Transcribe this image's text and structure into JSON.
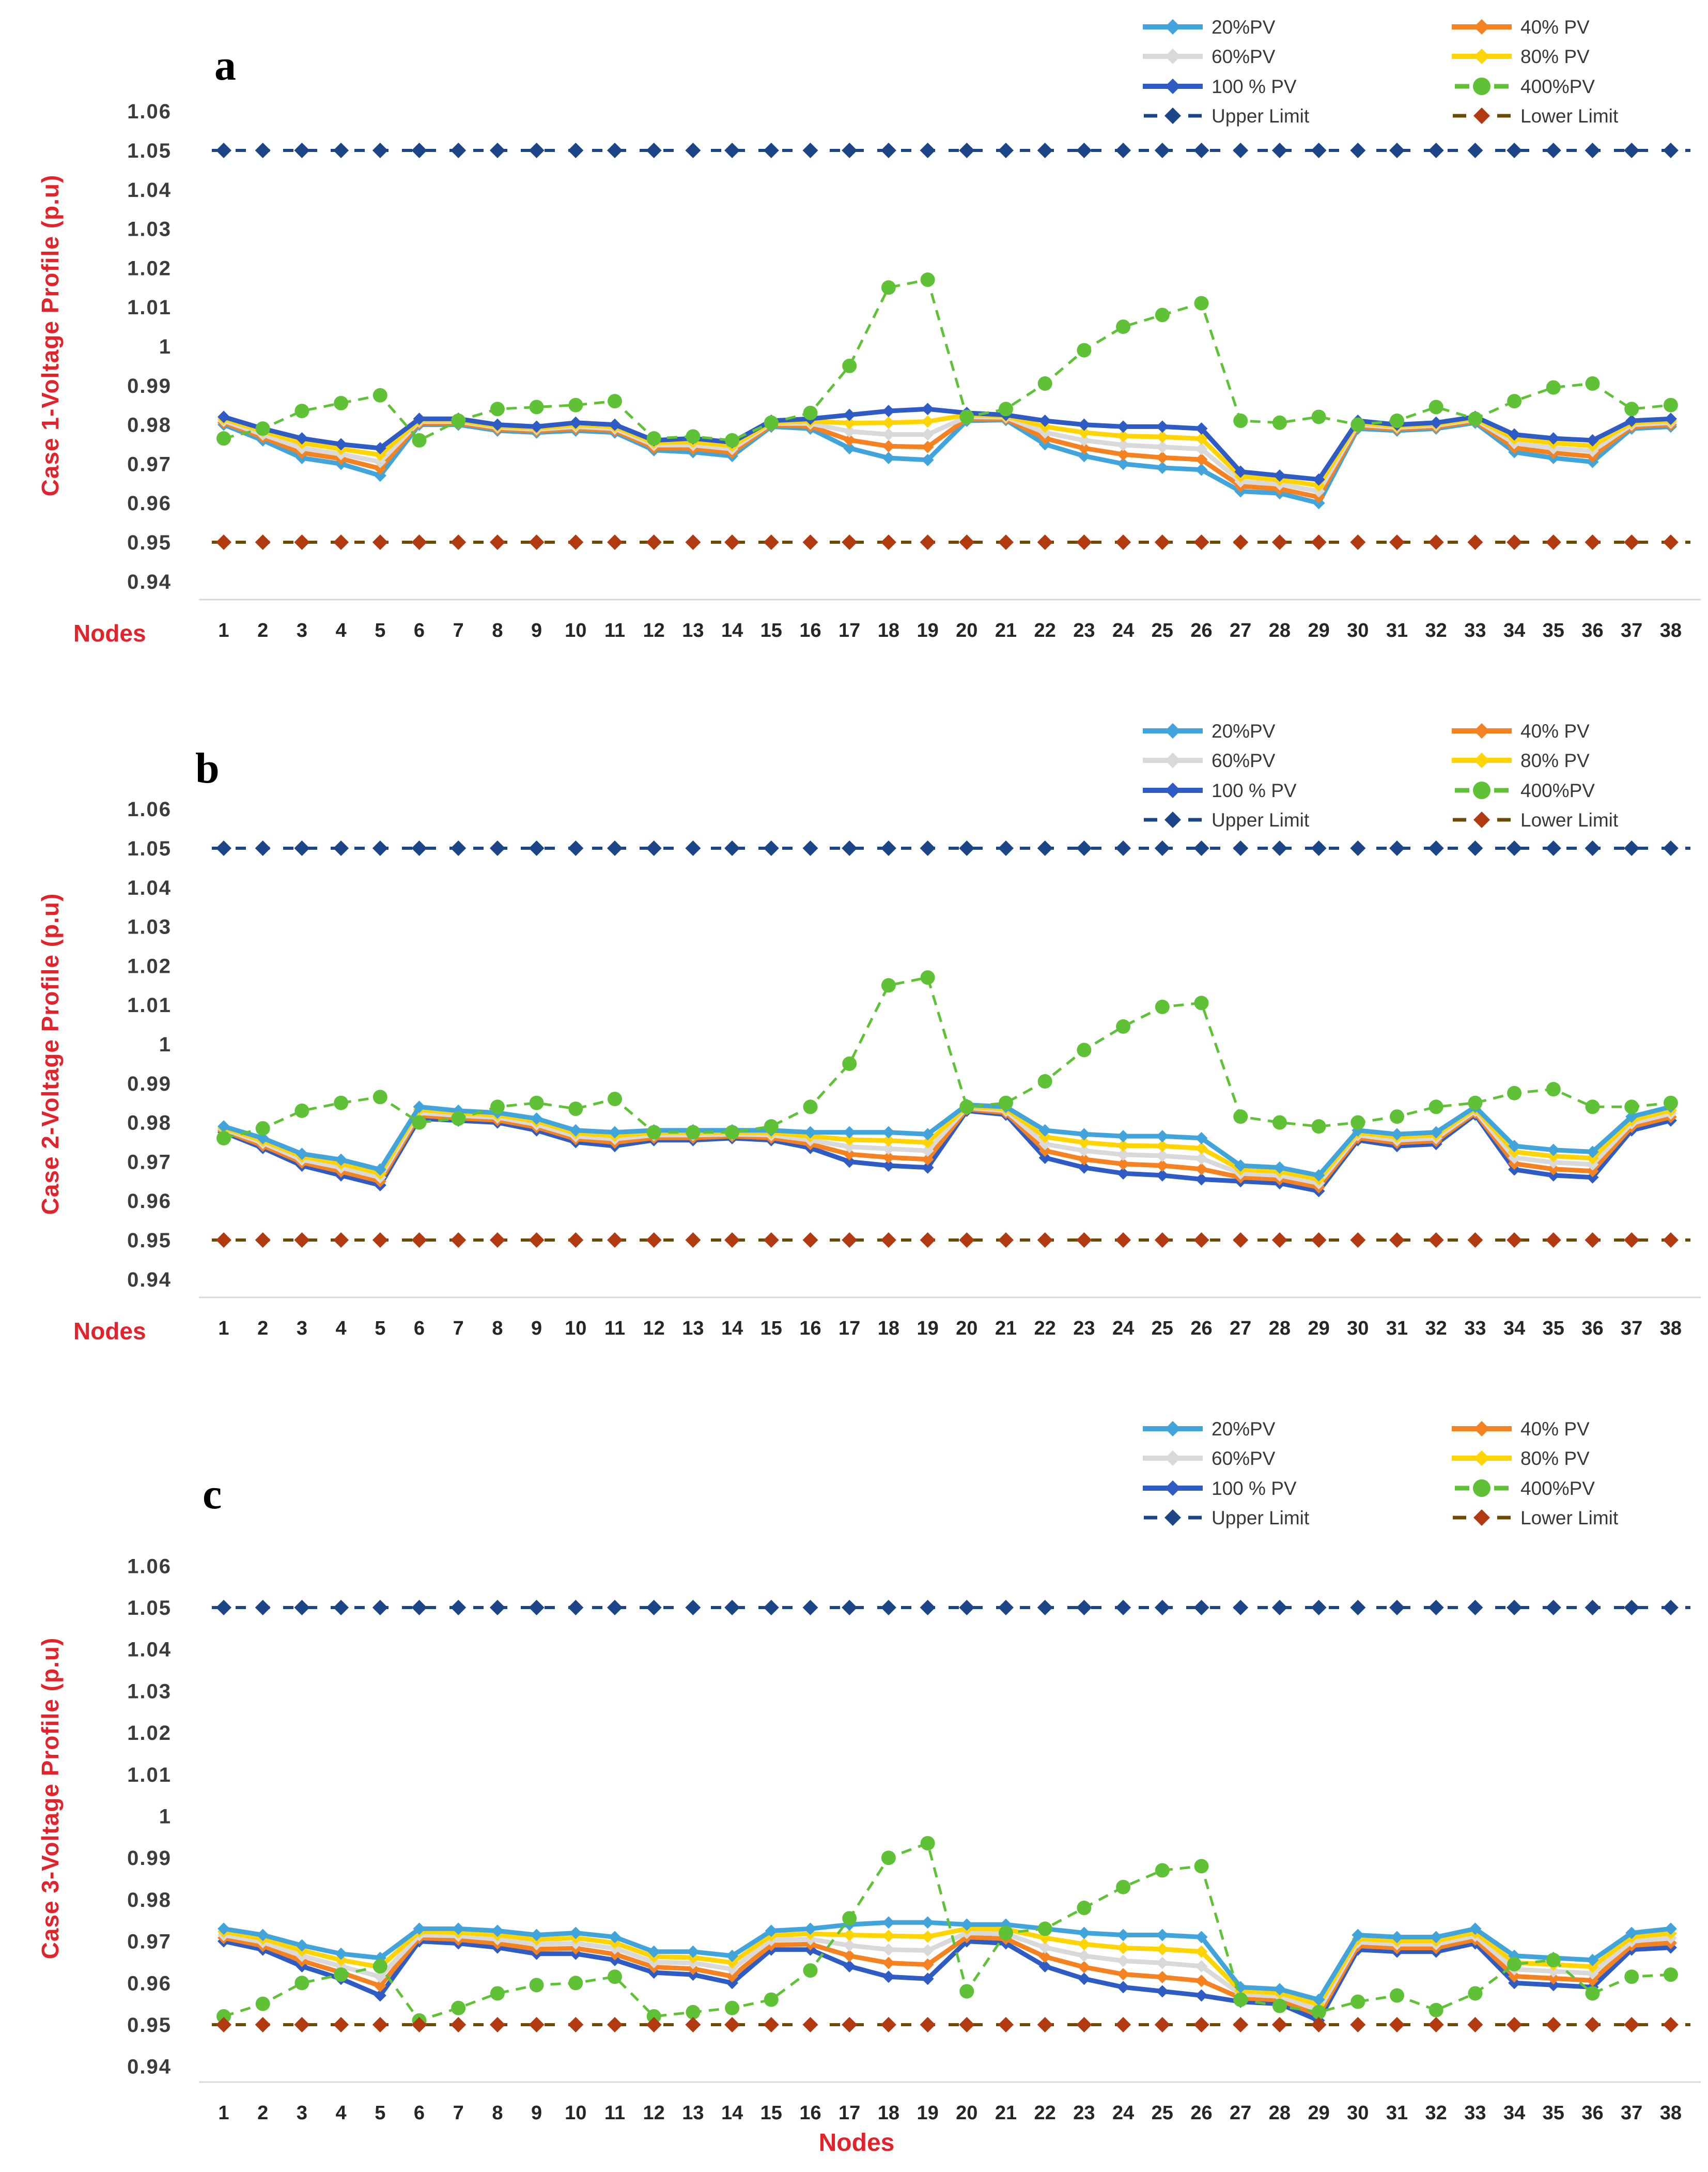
{
  "axes": {
    "ytick_labels": [
      "1.06",
      "1.05",
      "1.04",
      "1.03",
      "1.02",
      "1.01",
      "1",
      "0.99",
      "0.98",
      "0.97",
      "0.96",
      "0.95",
      "0.94"
    ],
    "node_labels": [
      1,
      2,
      3,
      4,
      5,
      6,
      7,
      8,
      9,
      10,
      11,
      12,
      13,
      14,
      15,
      16,
      17,
      18,
      19,
      20,
      21,
      22,
      23,
      24,
      25,
      26,
      27,
      28,
      29,
      30,
      31,
      32,
      33,
      34,
      35,
      36,
      37,
      38
    ]
  },
  "legend": {
    "entries": [
      {
        "label": "20%PV",
        "color": "#41a5dc",
        "style": "solid"
      },
      {
        "label": "40% PV",
        "color": "#f58220",
        "style": "solid"
      },
      {
        "label": "60%PV",
        "color": "#d9d9d9",
        "style": "solid"
      },
      {
        "label": "80% PV",
        "color": "#ffd400",
        "style": "solid"
      },
      {
        "label": "100 % PV",
        "color": "#2f5bc4",
        "style": "solid"
      },
      {
        "label": "400%PV",
        "color": "#5fc236",
        "style": "dashed-circle"
      },
      {
        "label": "Upper Limit",
        "color": "#1b4586",
        "style": "dashed-diamond",
        "dash_color": "#1b4586"
      },
      {
        "label": "Lower Limit",
        "color": "#b23a10",
        "style": "dashed-diamond",
        "dash_color": "#6e4b05"
      }
    ]
  },
  "chart_data": [
    {
      "type": "line",
      "panel_label": "a",
      "ylabel": "Case 1-Voltage Profile (p.u)",
      "xlabel": "Nodes",
      "xlabel_position": "left",
      "ylim": [
        0.94,
        1.06
      ],
      "grid": "bottom-only",
      "legend_position": "top-right",
      "series": [
        {
          "name": "20%PV",
          "values": [
            0.98,
            0.976,
            0.9715,
            0.97,
            0.967,
            0.98,
            0.98,
            0.9785,
            0.978,
            0.9785,
            0.978,
            0.9735,
            0.973,
            0.972,
            0.9795,
            0.979,
            0.974,
            0.9715,
            0.971,
            0.981,
            0.9812,
            0.975,
            0.972,
            0.97,
            0.969,
            0.9685,
            0.963,
            0.9625,
            0.96,
            0.979,
            0.9785,
            0.979,
            0.9805,
            0.973,
            0.9715,
            0.9705,
            0.979,
            0.9795
          ]
        },
        {
          "name": "40% PV",
          "values": [
            0.9805,
            0.9768,
            0.9728,
            0.9713,
            0.9688,
            0.9804,
            0.9804,
            0.9789,
            0.9784,
            0.979,
            0.9785,
            0.9741,
            0.9739,
            0.9729,
            0.9799,
            0.9796,
            0.9761,
            0.9745,
            0.9743,
            0.9815,
            0.9815,
            0.9765,
            0.974,
            0.9724,
            0.9716,
            0.9711,
            0.9643,
            0.9636,
            0.9615,
            0.9795,
            0.9789,
            0.9794,
            0.9809,
            0.9741,
            0.9728,
            0.9719,
            0.9795,
            0.98
          ]
        },
        {
          "name": "60%PV",
          "values": [
            0.981,
            0.9775,
            0.974,
            0.9725,
            0.9705,
            0.9808,
            0.9808,
            0.9793,
            0.9788,
            0.9795,
            0.979,
            0.9748,
            0.9748,
            0.9738,
            0.9803,
            0.9803,
            0.9783,
            0.9775,
            0.9775,
            0.982,
            0.9819,
            0.978,
            0.976,
            0.9748,
            0.9743,
            0.9738,
            0.9655,
            0.9648,
            0.963,
            0.98,
            0.9793,
            0.9798,
            0.9813,
            0.9753,
            0.974,
            0.9733,
            0.98,
            0.9805
          ]
        },
        {
          "name": "80% PV",
          "values": [
            0.9815,
            0.9783,
            0.9753,
            0.9738,
            0.9723,
            0.9811,
            0.9811,
            0.9796,
            0.9791,
            0.98,
            0.9795,
            0.9754,
            0.9756,
            0.9746,
            0.9806,
            0.9809,
            0.9804,
            0.9805,
            0.9808,
            0.9825,
            0.9822,
            0.9795,
            0.978,
            0.9771,
            0.9769,
            0.9764,
            0.9668,
            0.9659,
            0.9645,
            0.9805,
            0.9796,
            0.9801,
            0.9816,
            0.9764,
            0.9753,
            0.9746,
            0.9805,
            0.981
          ]
        },
        {
          "name": "100 % PV",
          "values": [
            0.982,
            0.979,
            0.9765,
            0.975,
            0.974,
            0.9815,
            0.9815,
            0.98,
            0.9795,
            0.9805,
            0.98,
            0.976,
            0.9765,
            0.9755,
            0.981,
            0.9815,
            0.9825,
            0.9835,
            0.984,
            0.983,
            0.9825,
            0.981,
            0.98,
            0.9795,
            0.9795,
            0.979,
            0.968,
            0.967,
            0.966,
            0.981,
            0.98,
            0.9805,
            0.982,
            0.9775,
            0.9765,
            0.976,
            0.981,
            0.9815
          ]
        },
        {
          "name": "400%PV",
          "values": [
            0.9765,
            0.979,
            0.9835,
            0.9855,
            0.9875,
            0.976,
            0.981,
            0.984,
            0.9845,
            0.985,
            0.986,
            0.9765,
            0.977,
            0.976,
            0.9805,
            0.983,
            0.995,
            1.015,
            1.017,
            0.982,
            0.984,
            0.9905,
            0.999,
            1.005,
            1.008,
            1.011,
            0.981,
            0.9805,
            0.982,
            0.98,
            0.981,
            0.9845,
            0.9815,
            0.986,
            0.9895,
            0.9905,
            0.984,
            0.985
          ]
        },
        {
          "name": "Upper Limit",
          "constant": 1.05
        },
        {
          "name": "Lower Limit",
          "constant": 0.95
        }
      ]
    },
    {
      "type": "line",
      "panel_label": "b",
      "ylabel": "Case 2-Voltage Profile (p.u)",
      "xlabel": "Nodes",
      "xlabel_position": "left",
      "ylim": [
        0.94,
        1.06
      ],
      "grid": "bottom-only",
      "legend_position": "top-right",
      "series": [
        {
          "name": "20%PV",
          "values": [
            0.979,
            0.976,
            0.972,
            0.9705,
            0.968,
            0.984,
            0.983,
            0.9825,
            0.981,
            0.978,
            0.9775,
            0.978,
            0.978,
            0.978,
            0.978,
            0.9775,
            0.9775,
            0.9775,
            0.977,
            0.9845,
            0.984,
            0.978,
            0.977,
            0.9765,
            0.9765,
            0.976,
            0.969,
            0.9685,
            0.9665,
            0.978,
            0.977,
            0.9775,
            0.984,
            0.974,
            0.973,
            0.9725,
            0.9815,
            0.984
          ]
        },
        {
          "name": "40% PV",
          "values": [
            0.9779,
            0.9741,
            0.9698,
            0.9675,
            0.965,
            0.9818,
            0.9811,
            0.9806,
            0.9788,
            0.9758,
            0.9749,
            0.9761,
            0.9761,
            0.9765,
            0.9761,
            0.9745,
            0.9719,
            0.9711,
            0.9706,
            0.9834,
            0.9825,
            0.9728,
            0.9706,
            0.9694,
            0.969,
            0.9681,
            0.966,
            0.9655,
            0.9635,
            0.9761,
            0.9748,
            0.9753,
            0.9825,
            0.9695,
            0.9681,
            0.9676,
            0.9789,
            0.9814
          ]
        },
        {
          "name": "60%PV",
          "values": [
            0.9783,
            0.9748,
            0.9705,
            0.9685,
            0.966,
            0.9825,
            0.9818,
            0.9813,
            0.9795,
            0.9765,
            0.9758,
            0.9768,
            0.9768,
            0.977,
            0.9768,
            0.9755,
            0.9738,
            0.9733,
            0.9728,
            0.9838,
            0.983,
            0.9745,
            0.9728,
            0.9718,
            0.9715,
            0.9708,
            0.967,
            0.9665,
            0.9645,
            0.9768,
            0.9755,
            0.976,
            0.983,
            0.971,
            0.9698,
            0.9693,
            0.9798,
            0.9823
          ]
        },
        {
          "name": "80% PV",
          "values": [
            0.9786,
            0.9754,
            0.9713,
            0.9695,
            0.967,
            0.9833,
            0.9824,
            0.9819,
            0.9803,
            0.9773,
            0.9766,
            0.9774,
            0.9774,
            0.9775,
            0.9774,
            0.9765,
            0.9756,
            0.9754,
            0.9749,
            0.9841,
            0.9835,
            0.9763,
            0.9749,
            0.9741,
            0.974,
            0.9734,
            0.968,
            0.9675,
            0.9655,
            0.9774,
            0.9763,
            0.9768,
            0.9835,
            0.9725,
            0.9714,
            0.9709,
            0.9806,
            0.9831
          ]
        },
        {
          "name": "100 % PV",
          "values": [
            0.9775,
            0.9735,
            0.969,
            0.9665,
            0.964,
            0.981,
            0.9805,
            0.98,
            0.978,
            0.975,
            0.974,
            0.9755,
            0.9755,
            0.976,
            0.9755,
            0.9735,
            0.97,
            0.969,
            0.9685,
            0.983,
            0.982,
            0.971,
            0.9685,
            0.967,
            0.9665,
            0.9655,
            0.965,
            0.9645,
            0.9625,
            0.9755,
            0.974,
            0.9745,
            0.982,
            0.968,
            0.9665,
            0.966,
            0.978,
            0.9805
          ]
        },
        {
          "name": "400%PV",
          "values": [
            0.976,
            0.9785,
            0.983,
            0.985,
            0.9865,
            0.98,
            0.981,
            0.984,
            0.985,
            0.9835,
            0.986,
            0.9775,
            0.9775,
            0.9775,
            0.979,
            0.984,
            0.995,
            1.015,
            1.017,
            0.984,
            0.985,
            0.9905,
            0.9985,
            1.0045,
            1.0095,
            1.0105,
            0.9815,
            0.98,
            0.979,
            0.98,
            0.9815,
            0.984,
            0.985,
            0.9875,
            0.9885,
            0.984,
            0.984,
            0.985
          ]
        },
        {
          "name": "Upper Limit",
          "constant": 1.05
        },
        {
          "name": "Lower Limit",
          "constant": 0.95
        }
      ]
    },
    {
      "type": "line",
      "panel_label": "c",
      "ylabel": "Case 3-Voltage Profile (p.u)",
      "xlabel": "Nodes",
      "xlabel_position": "center",
      "ylim": [
        0.94,
        1.06
      ],
      "grid": "bottom-only",
      "legend_position": "top-right",
      "series": [
        {
          "name": "20%PV",
          "values": [
            0.973,
            0.9715,
            0.969,
            0.967,
            0.966,
            0.973,
            0.973,
            0.9725,
            0.9715,
            0.972,
            0.971,
            0.9675,
            0.9675,
            0.9665,
            0.9725,
            0.973,
            0.974,
            0.9745,
            0.9745,
            0.974,
            0.974,
            0.973,
            0.972,
            0.9715,
            0.9715,
            0.971,
            0.959,
            0.9585,
            0.956,
            0.9715,
            0.971,
            0.971,
            0.973,
            0.9665,
            0.966,
            0.9655,
            0.972,
            0.973
          ]
        },
        {
          "name": "40% PV",
          "values": [
            0.9708,
            0.9689,
            0.9653,
            0.9625,
            0.9593,
            0.9708,
            0.9704,
            0.9695,
            0.9681,
            0.9683,
            0.9669,
            0.9638,
            0.9634,
            0.9616,
            0.9691,
            0.9693,
            0.9665,
            0.9648,
            0.9644,
            0.971,
            0.9706,
            0.9663,
            0.9638,
            0.9621,
            0.9614,
            0.9605,
            0.9564,
            0.9559,
            0.9523,
            0.9689,
            0.9684,
            0.9684,
            0.9704,
            0.9616,
            0.9611,
            0.9606,
            0.969,
            0.9696
          ]
        },
        {
          "name": "60%PV",
          "values": [
            0.9715,
            0.9698,
            0.9665,
            0.964,
            0.9615,
            0.9715,
            0.9713,
            0.9705,
            0.9693,
            0.9695,
            0.9683,
            0.965,
            0.9648,
            0.9633,
            0.9703,
            0.9705,
            0.969,
            0.968,
            0.9678,
            0.972,
            0.9718,
            0.9685,
            0.9665,
            0.9653,
            0.9648,
            0.964,
            0.9573,
            0.9568,
            0.9535,
            0.9698,
            0.9693,
            0.9693,
            0.9713,
            0.9633,
            0.9628,
            0.9623,
            0.97,
            0.9708
          ]
        },
        {
          "name": "80% PV",
          "values": [
            0.9723,
            0.9706,
            0.9678,
            0.9655,
            0.9638,
            0.9723,
            0.9721,
            0.9715,
            0.9704,
            0.9708,
            0.9696,
            0.9663,
            0.9661,
            0.9649,
            0.9714,
            0.9718,
            0.9715,
            0.9713,
            0.9711,
            0.973,
            0.9729,
            0.9708,
            0.9693,
            0.9684,
            0.9681,
            0.9675,
            0.9581,
            0.9576,
            0.9548,
            0.9706,
            0.9701,
            0.9701,
            0.9721,
            0.9649,
            0.9644,
            0.9639,
            0.971,
            0.9719
          ]
        },
        {
          "name": "100 % PV",
          "values": [
            0.97,
            0.968,
            0.964,
            0.961,
            0.957,
            0.97,
            0.9695,
            0.9685,
            0.967,
            0.967,
            0.9655,
            0.9625,
            0.962,
            0.96,
            0.968,
            0.968,
            0.964,
            0.9615,
            0.961,
            0.97,
            0.9695,
            0.964,
            0.961,
            0.959,
            0.958,
            0.957,
            0.9555,
            0.955,
            0.951,
            0.968,
            0.9675,
            0.9675,
            0.9695,
            0.96,
            0.9595,
            0.959,
            0.968,
            0.9685
          ]
        },
        {
          "name": "400%PV",
          "values": [
            0.952,
            0.955,
            0.96,
            0.962,
            0.964,
            0.951,
            0.954,
            0.9575,
            0.9595,
            0.96,
            0.9615,
            0.952,
            0.953,
            0.954,
            0.956,
            0.963,
            0.9755,
            0.99,
            0.9935,
            0.958,
            0.972,
            0.973,
            0.978,
            0.983,
            0.987,
            0.988,
            0.956,
            0.9545,
            0.953,
            0.9555,
            0.957,
            0.9535,
            0.9575,
            0.9645,
            0.9655,
            0.9575,
            0.9615,
            0.962
          ]
        },
        {
          "name": "Upper Limit",
          "constant": 1.05
        },
        {
          "name": "Lower Limit",
          "constant": 0.95
        }
      ]
    }
  ]
}
